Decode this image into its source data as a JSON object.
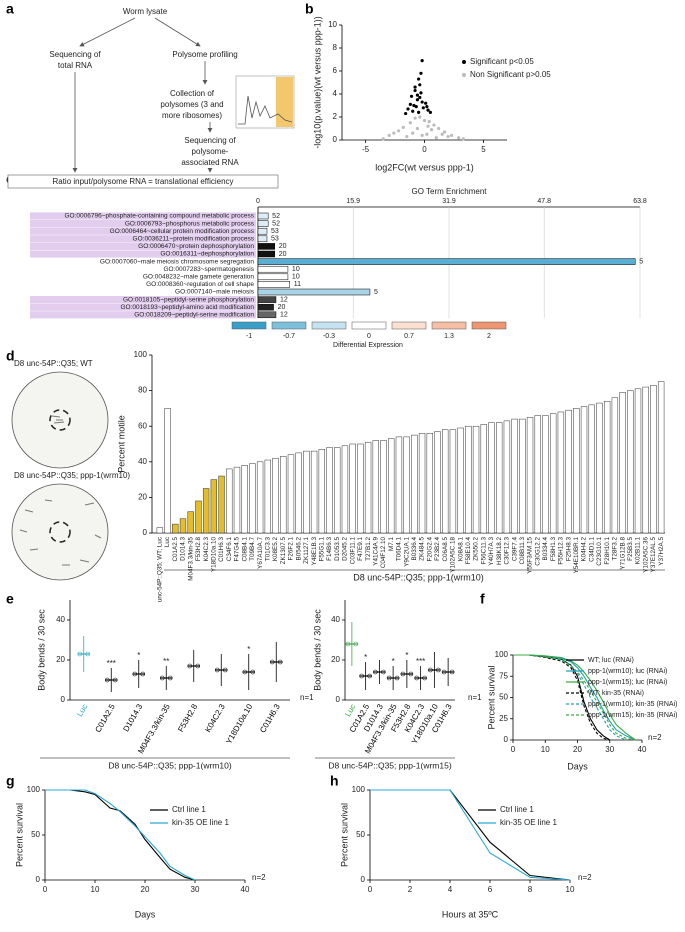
{
  "panel_labels": [
    "a",
    "b",
    "c",
    "d",
    "e",
    "f",
    "g",
    "h"
  ],
  "diagram": {
    "nodes": [
      {
        "lines": [
          "Worm lysate"
        ]
      },
      {
        "lines": [
          "Sequencing of",
          "total RNA"
        ]
      },
      {
        "lines": [
          "Polysome profiling"
        ]
      },
      {
        "lines": [
          "Collection of",
          "polysomes (3 and",
          "more ribosomes)"
        ]
      },
      {
        "lines": [
          "Sequencing of",
          "polysome-",
          "associated RNA"
        ]
      },
      {
        "lines": [
          "Ratio input/polysome RNA = translational efficiency"
        ]
      }
    ]
  },
  "panel_d_images": [
    "D8 unc-54P::Q35; WT",
    "D8 unc-54P::Q35; ppp-1(wrm10)"
  ],
  "chart_data": [
    {
      "type": "scatter",
      "x_label": "log2FC(wt versus ppp-1)",
      "y_label": "-log10(p.value)(wt versus ppp-1))",
      "xlim": [
        -7,
        7
      ],
      "xticks": [
        -5,
        0,
        5
      ],
      "ylim": [
        0,
        10
      ],
      "yticks": [
        0,
        2,
        4,
        6,
        8,
        10
      ],
      "series": [
        {
          "name": "Significant p<0.05",
          "color": "#000000",
          "x": [
            -0.2,
            -0.5,
            -0.8,
            -1.1,
            -0.3,
            -0.6,
            0.1,
            -0.9,
            -1.4,
            -0.4,
            -0.7,
            0.3,
            -0.1,
            -1.0,
            -0.5,
            -0.3,
            -1.6,
            0.5,
            -0.8,
            -0.2,
            -0.6,
            0.2,
            -1.2,
            -0.4
          ],
          "values": [
            6.9,
            5.3,
            4.6,
            3.8,
            4.1,
            3.5,
            3.2,
            3.0,
            2.7,
            3.7,
            2.9,
            2.6,
            2.8,
            2.5,
            2.4,
            5.8,
            2.3,
            2.4,
            4.3,
            3.3,
            3.9,
            2.9,
            3.1,
            4.8
          ]
        },
        {
          "name": "Non Significant p>0.05",
          "color": "#bbbbbb",
          "x": [
            -3.0,
            -2.2,
            -1.8,
            -1.2,
            -0.8,
            -0.4,
            0.0,
            0.4,
            0.8,
            1.2,
            1.7,
            2.3,
            2.9,
            -2.6,
            -1.5,
            -0.6,
            0.2,
            0.6,
            1.0,
            1.5,
            2.0,
            -1.0,
            -0.2,
            0.3,
            -3.5,
            3.3
          ],
          "values": [
            0.4,
            0.8,
            1.1,
            1.5,
            1.9,
            2.0,
            1.7,
            1.6,
            1.3,
            1.0,
            0.7,
            0.4,
            0.2,
            0.6,
            0.3,
            1.0,
            0.5,
            0.9,
            0.2,
            0.5,
            0.3,
            0.6,
            0.4,
            1.2,
            0.1,
            0.1
          ]
        }
      ]
    },
    {
      "type": "hbar",
      "title": "GO Term Enrichment",
      "categories": [
        "GO:0006796~phosphate-containing compound metabolic process",
        "GO:0006793~phosphorus metabolic process",
        "GO:0006464~cellular protein modification process",
        "GO:0036211~protein modification process",
        "GO:0006470~protein dephosphorylation",
        "GO:0016311~dephosphorylation",
        "GO:0007060~male meiosis chromosome segregation",
        "GO:0007283~spermatogenesis",
        "GO:0048232~male gamete generation",
        "GO:0008360~regulation of cell shape",
        "GO:0007140~male meiosis",
        "GO:0018105~peptidyl-serine phosphorylation",
        "GO:0018193~peptidyl-amino acid modification",
        "GO:0018209~peptidyl-serine modification"
      ],
      "values": [
        1.7,
        1.7,
        1.5,
        1.5,
        2.8,
        2.8,
        63.0,
        5.0,
        5.0,
        5.3,
        18.7,
        3.0,
        2.6,
        3.0
      ],
      "counts": [
        52,
        52,
        53,
        53,
        20,
        20,
        5,
        10,
        10,
        11,
        5,
        12,
        20,
        12
      ],
      "highlight": [
        true,
        true,
        true,
        true,
        true,
        true,
        false,
        false,
        false,
        false,
        false,
        true,
        true,
        true
      ],
      "colors": [
        "#dbeef6",
        "#dbeef6",
        "#dbeef6",
        "#dbeef6",
        "#111111",
        "#111111",
        "#5aaed3",
        "#ffffff",
        "#ffffff",
        "#ffffff",
        "#a9d4e8",
        "#444444",
        "#222222",
        "#666666"
      ],
      "xlim": [
        0,
        63.8
      ],
      "xticks": [
        0,
        15.9,
        31.9,
        47.8,
        63.8
      ],
      "grid": true,
      "legend_title": "Differential Expression",
      "legend_values": [
        -1,
        -0.7,
        -0.3,
        0,
        0.7,
        1.3,
        2
      ],
      "legend_colors": [
        "#3a9fc8",
        "#7cc0dc",
        "#c4e2ef",
        "#ffffff",
        "#fbe0d2",
        "#f6bfa5",
        "#ee9572"
      ]
    },
    {
      "type": "bar",
      "y_label": "Percent motile",
      "x_label": "D8 unc-54P::Q35; ppp-1(wrm10)",
      "ylim": [
        0,
        100
      ],
      "yticks": [
        0,
        20,
        40,
        60,
        80,
        100
      ],
      "color": "#ffffff",
      "highlight_color": "#e3bd2a",
      "highlighted": [
        2,
        3,
        4,
        5,
        6,
        7,
        8
      ],
      "categories": [
        "unc-54P::Q35; WT; Luc",
        "Luc",
        "C01A2.5",
        "D1014.3",
        "M04F3.3/kin-35",
        "F53H2.8",
        "K04C2.3",
        "Y18D10a.10",
        "C01H6.3",
        "C34F6.1",
        "F47G4.5",
        "C08B4.1",
        "T09B4.7",
        "Y67A10A.7",
        "T01C3.3",
        "K08E5.2",
        "ZK1307.5",
        "F26F2.1",
        "B0546.2",
        "ZK1127.1",
        "Y48E1B.3",
        "F55G1.1",
        "F14B6.3",
        "D1053.5",
        "D2045.2",
        "C03F11.1",
        "F47E9.1",
        "T27B1.2",
        "Y41C4A.9",
        "C04F12.10",
        "M7.1",
        "T06D4.1",
        "Y9C2UA.1",
        "B0336.4",
        "ZK484.5",
        "F20G2.4",
        "F23B2.4",
        "C06A8.5",
        "Y102A5C.18",
        "K08A8.1",
        "F58E10.4",
        "ZK550.2",
        "F56C11.3",
        "Y40H7A.3",
        "H38K18.2",
        "C30F12.3",
        "C39F7.4",
        "C08B11.3",
        "Y55F3AM.15",
        "C30G12.2",
        "B0334.4",
        "F58H1.3",
        "F55H12.3",
        "F25H8.3",
        "Y54E10BR.1",
        "K04H4.2",
        "C34D1.1",
        "C23G10.1",
        "F28H10.1",
        "T28F3.2",
        "Y71G12B.8",
        "F25B3.5",
        "K02B11.1",
        "Y102A5C.36",
        "Y37E12AL.5",
        "Y37H2A.5"
      ],
      "values": [
        3,
        70,
        5,
        8,
        12,
        18,
        25,
        30,
        32,
        36,
        37,
        38,
        39,
        40,
        41,
        42,
        43,
        44,
        45,
        46,
        46,
        47,
        48,
        48,
        49,
        50,
        50,
        51,
        52,
        52,
        53,
        54,
        54,
        55,
        56,
        56,
        57,
        58,
        58,
        59,
        60,
        60,
        61,
        62,
        62,
        63,
        64,
        64,
        65,
        66,
        66,
        67,
        68,
        69,
        70,
        71,
        72,
        73,
        74,
        76,
        79,
        80,
        81,
        82,
        83,
        85
      ]
    },
    {
      "type": "dot",
      "y_label": "Body bends / 30 sec",
      "x_label": "D8 unc-54P::Q35; ppp-1(wrm10)",
      "note": "n=1",
      "ylim": [
        0,
        50
      ],
      "yticks": [
        0,
        20,
        40
      ],
      "categories": [
        "Luc",
        "C01A2.5",
        "D1014.3",
        "M04F3.3/kin-35",
        "F53H2.8",
        "K04C2.3",
        "Y18D10a.10",
        "C01H6.3"
      ],
      "values": [
        23,
        10,
        13,
        11,
        17,
        15,
        14,
        19
      ],
      "errors": [
        9,
        6,
        7,
        6,
        8,
        8,
        9,
        10
      ],
      "annotations": [
        null,
        "***",
        "*",
        "**",
        null,
        null,
        "*",
        null
      ],
      "colors": [
        "#29a8cc",
        "#000000",
        "#000000",
        "#000000",
        "#000000",
        "#000000",
        "#000000",
        "#000000"
      ]
    },
    {
      "type": "dot",
      "y_label": "Body bends / 30 sec",
      "x_label": "D8 unc-54P::Q35; ppp-1(wrm15)",
      "note": "n=1",
      "ylim": [
        0,
        50
      ],
      "yticks": [
        0,
        20,
        40
      ],
      "categories": [
        "Luc",
        "C01A2.5",
        "D1014.3",
        "M04F3.3/kin-35",
        "F53H2.8",
        "K04C2.3",
        "Y18D10a.10",
        "C01H6.3"
      ],
      "values": [
        28,
        12,
        14,
        11,
        13,
        11,
        15,
        14
      ],
      "errors": [
        11,
        7,
        6,
        6,
        7,
        6,
        9,
        7
      ],
      "annotations": [
        null,
        "*",
        null,
        "*",
        "*",
        "***",
        null,
        null
      ],
      "colors": [
        "#3aa845",
        "#000000",
        "#000000",
        "#000000",
        "#000000",
        "#000000",
        "#000000",
        "#000000"
      ]
    },
    {
      "type": "line",
      "x_label": "Days",
      "y_label": "Percent survival",
      "note": "n=2",
      "xlim": [
        0,
        40
      ],
      "xticks": [
        0,
        10,
        20,
        30,
        40
      ],
      "ylim": [
        0,
        100
      ],
      "yticks": [
        0,
        25,
        50,
        75,
        100
      ],
      "x": [
        0,
        5,
        10,
        15,
        18,
        20,
        22,
        24,
        26,
        28,
        30,
        32,
        35,
        38
      ],
      "series": [
        {
          "name": "WT; luc (RNAi)",
          "color": "#000000",
          "dash": false,
          "values": [
            100,
            100,
            98,
            95,
            88,
            75,
            45,
            25,
            12,
            5,
            0,
            null,
            null,
            null
          ]
        },
        {
          "name": "ppp-1(wrm10); luc (RNAi)",
          "color": "#1fa3b5",
          "dash": false,
          "values": [
            100,
            100,
            99,
            96,
            92,
            85,
            75,
            62,
            50,
            35,
            22,
            12,
            5,
            0
          ]
        },
        {
          "name": "ppp-1(wrm15); luc (RNAi)",
          "color": "#3aa845",
          "dash": false,
          "values": [
            100,
            100,
            99,
            97,
            93,
            88,
            80,
            70,
            58,
            45,
            30,
            18,
            8,
            0
          ]
        },
        {
          "name": "WT; kin-35 (RNAi)",
          "color": "#000000",
          "dash": true,
          "values": [
            100,
            100,
            97,
            93,
            85,
            70,
            40,
            20,
            8,
            2,
            0,
            null,
            null,
            null
          ]
        },
        {
          "name": "ppp-1(wrm10); kin-35 (RNAi)",
          "color": "#1fa3b5",
          "dash": true,
          "values": [
            100,
            100,
            98,
            95,
            88,
            78,
            65,
            50,
            38,
            25,
            12,
            5,
            0,
            null
          ]
        },
        {
          "name": "ppp-1(wrm15); kin-35 (RNAi)",
          "color": "#3aa845",
          "dash": true,
          "values": [
            100,
            100,
            98,
            94,
            87,
            80,
            70,
            58,
            45,
            32,
            18,
            8,
            2,
            0
          ]
        }
      ]
    },
    {
      "type": "line",
      "x_label": "Days",
      "y_label": "Percent survival",
      "note": "n=2",
      "xlim": [
        0,
        40
      ],
      "xticks": [
        0,
        10,
        20,
        30,
        40
      ],
      "ylim": [
        0,
        100
      ],
      "yticks": [
        0,
        50,
        100
      ],
      "x": [
        0,
        5,
        8,
        10,
        13,
        15,
        18,
        20,
        23,
        25,
        28,
        30
      ],
      "series": [
        {
          "name": "Ctrl line 1",
          "color": "#000000",
          "dash": false,
          "values": [
            100,
            100,
            98,
            95,
            80,
            77,
            62,
            45,
            25,
            12,
            3,
            0
          ]
        },
        {
          "name": "kin-35 OE line 1",
          "color": "#2aa8d8",
          "dash": false,
          "values": [
            100,
            100,
            100,
            96,
            85,
            76,
            60,
            48,
            30,
            15,
            5,
            0
          ]
        }
      ]
    },
    {
      "type": "line",
      "x_label": "Hours at 35ºC",
      "y_label": "Percent survival",
      "note": "n=2",
      "xlim": [
        0,
        10
      ],
      "xticks": [
        0,
        2,
        4,
        6,
        8,
        10
      ],
      "ylim": [
        0,
        100
      ],
      "yticks": [
        0,
        50,
        100
      ],
      "x": [
        0,
        2,
        4,
        6,
        8,
        10
      ],
      "series": [
        {
          "name": "Ctrl line 1",
          "color": "#000000",
          "dash": false,
          "values": [
            100,
            100,
            100,
            42,
            5,
            0
          ]
        },
        {
          "name": "kin-35 OE line 1",
          "color": "#2aa8d8",
          "dash": false,
          "values": [
            100,
            100,
            100,
            30,
            3,
            0
          ]
        }
      ]
    }
  ]
}
